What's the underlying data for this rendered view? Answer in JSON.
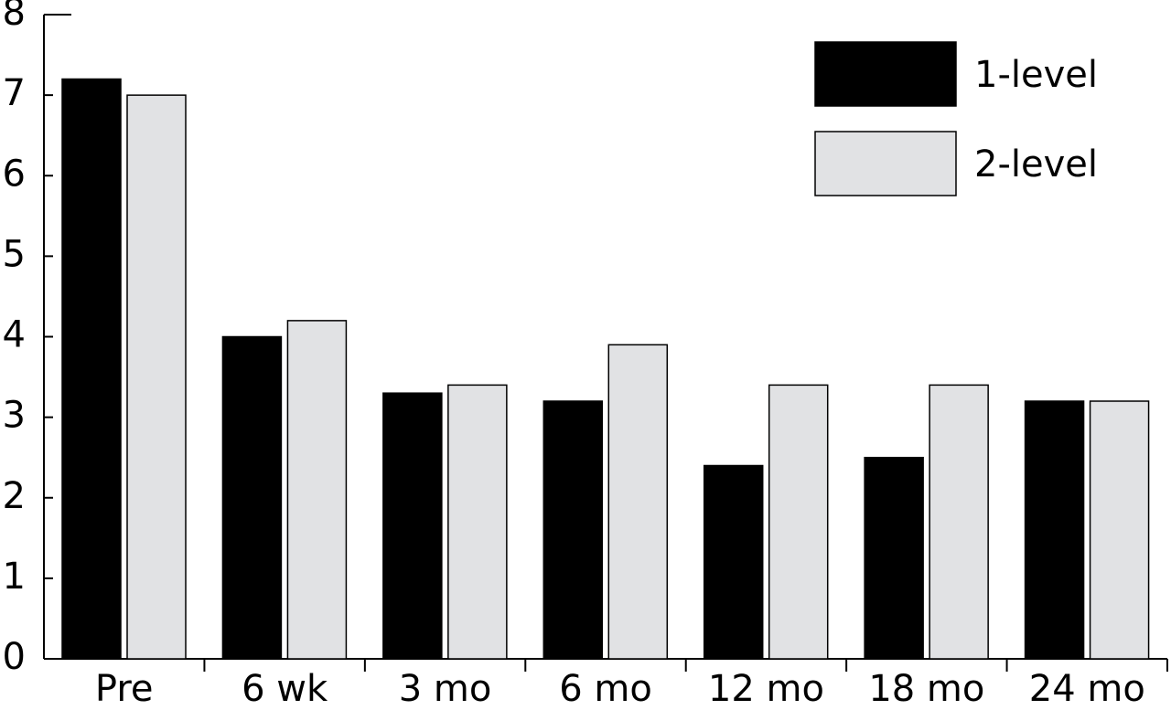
{
  "chart_data": {
    "type": "bar",
    "categories": [
      "Pre",
      "6 wk",
      "3 mo",
      "6 mo",
      "12 mo",
      "18 mo",
      "24 mo"
    ],
    "series": [
      {
        "name": "1-level",
        "color": "#000000",
        "values": [
          7.2,
          4.0,
          3.3,
          3.2,
          2.4,
          2.5,
          3.2
        ]
      },
      {
        "name": "2-level",
        "color": "#e1e2e4",
        "values": [
          7.0,
          4.2,
          3.4,
          3.9,
          3.4,
          3.4,
          3.2
        ]
      }
    ],
    "ylim": [
      0,
      8
    ],
    "yticks": [
      0,
      1,
      2,
      3,
      4,
      5,
      6,
      7,
      8
    ],
    "legend": "top-right",
    "grid": false
  }
}
